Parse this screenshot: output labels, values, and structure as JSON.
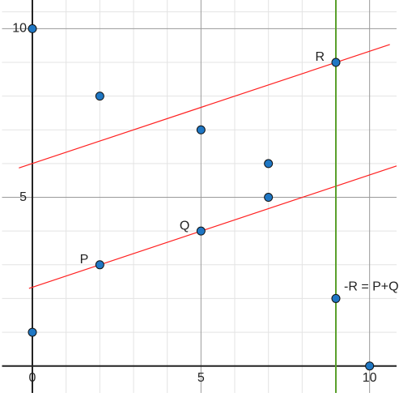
{
  "chart_data": {
    "type": "scatter",
    "xlim": [
      -0.9,
      10.8
    ],
    "ylim": [
      -0.8,
      10.85
    ],
    "xticks": [
      0,
      5,
      10
    ],
    "yticks": [
      0,
      5,
      10
    ],
    "xminor": [
      1,
      2,
      3,
      4,
      6,
      7,
      8,
      9
    ],
    "yminor": [
      1,
      2,
      3,
      4,
      6,
      7,
      8,
      9,
      10.5
    ],
    "grid": true,
    "points": {
      "color": "#1f77c4",
      "x": [
        0,
        2,
        5,
        7,
        7,
        5,
        2,
        9,
        9,
        0,
        10
      ],
      "y": [
        10,
        8,
        7,
        6,
        5,
        4,
        3,
        9,
        2,
        1,
        0
      ]
    },
    "lines": [
      {
        "color": "#ff2020",
        "x": [
          -0.4,
          10.6
        ],
        "y": [
          5.87,
          9.53
        ]
      },
      {
        "color": "#ff2020",
        "x": [
          -0.1,
          10.8
        ],
        "y": [
          2.3,
          5.93
        ]
      },
      {
        "color": "#5aa02c",
        "x": [
          9,
          9
        ],
        "y": [
          -0.8,
          10.85
        ]
      }
    ],
    "annotations": [
      {
        "text": "R",
        "x": 9,
        "y": 9
      },
      {
        "text": "Q",
        "x": 5,
        "y": 4
      },
      {
        "text": "P",
        "x": 2,
        "y": 3
      },
      {
        "text": "-R = P+Q",
        "x": 9,
        "y": 2
      }
    ]
  }
}
